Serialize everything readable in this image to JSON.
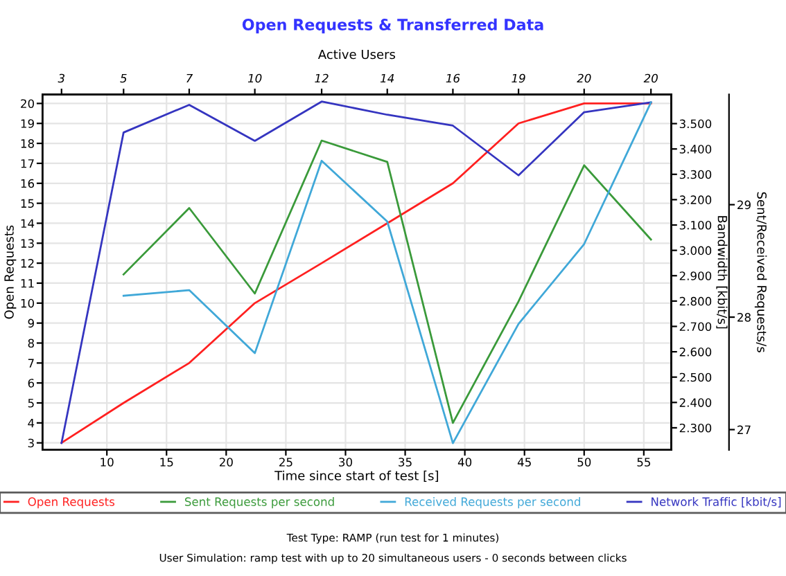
{
  "chart_data": {
    "type": "line",
    "title": "Open Requests & Transferred Data",
    "xlabel": "Time since start of test [s]",
    "ylabel": "Open Requests",
    "y2label": "Bandwidth [kbit/s]",
    "y3label": "Sent/Received Requests/s",
    "x2label": "Active Users",
    "x": [
      6.2,
      11.4,
      16.9,
      22.4,
      28.0,
      33.5,
      39.0,
      44.5,
      50.0,
      55.6
    ],
    "series": [
      {
        "name": "Open Requests",
        "color": "#ff2020",
        "values": [
          3,
          5,
          7,
          10,
          12,
          14,
          16,
          19,
          20,
          20
        ]
      },
      {
        "name": "Sent Requests per second",
        "color": "#3a9a3a",
        "axis": "y3",
        "values": [
          null,
          28.38,
          28.97,
          28.21,
          29.57,
          29.38,
          27.06,
          28.14,
          29.35,
          28.69
        ]
      },
      {
        "name": "Received Requests per second",
        "color": "#40a8d8",
        "axis": "y3",
        "values": [
          null,
          28.19,
          28.24,
          27.68,
          29.39,
          28.85,
          26.88,
          27.94,
          28.65,
          29.91
        ]
      },
      {
        "name": "Network Traffic [kbit/s]",
        "color": "#3535c0",
        "axis": "y2",
        "values": [
          2240,
          3465,
          3574,
          3432,
          3587,
          3535,
          3492,
          3296,
          3545,
          3584
        ]
      }
    ],
    "xlim": [
      4.6,
      57.3
    ],
    "xticks": [
      10,
      15,
      20,
      25,
      30,
      35,
      40,
      45,
      50,
      55
    ],
    "ylim": [
      2.65,
      20.45
    ],
    "yticks": [
      3,
      4,
      5,
      6,
      7,
      8,
      9,
      10,
      11,
      12,
      13,
      14,
      15,
      16,
      17,
      18,
      19,
      20
    ],
    "y2lim": [
      2213,
      3615
    ],
    "y2ticks": [
      {
        "value": 2300,
        "label": "2.300"
      },
      {
        "value": 2400,
        "label": "2.400"
      },
      {
        "value": 2500,
        "label": "2.500"
      },
      {
        "value": 2600,
        "label": "2.600"
      },
      {
        "value": 2700,
        "label": "2.700"
      },
      {
        "value": 2800,
        "label": "2.800"
      },
      {
        "value": 2900,
        "label": "2.900"
      },
      {
        "value": 3000,
        "label": "3.000"
      },
      {
        "value": 3100,
        "label": "3.100"
      },
      {
        "value": 3200,
        "label": "3.200"
      },
      {
        "value": 3300,
        "label": "3.300"
      },
      {
        "value": 3400,
        "label": "3.400"
      },
      {
        "value": 3500,
        "label": "3.500"
      }
    ],
    "y3lim": [
      26.82,
      29.98
    ],
    "y3ticks": [
      27,
      28,
      29
    ],
    "grid": true,
    "legend": "bottom",
    "marker": "none",
    "line_style": "solid",
    "annotations": [
      "3",
      "5",
      "7",
      "10",
      "12",
      "14",
      "16",
      "19",
      "20",
      "20",
      "Test Type: RAMP (run test for 1 minutes)",
      "User Simulation: ramp test with up to 20 simultaneous users - 0 seconds between clicks"
    ]
  }
}
